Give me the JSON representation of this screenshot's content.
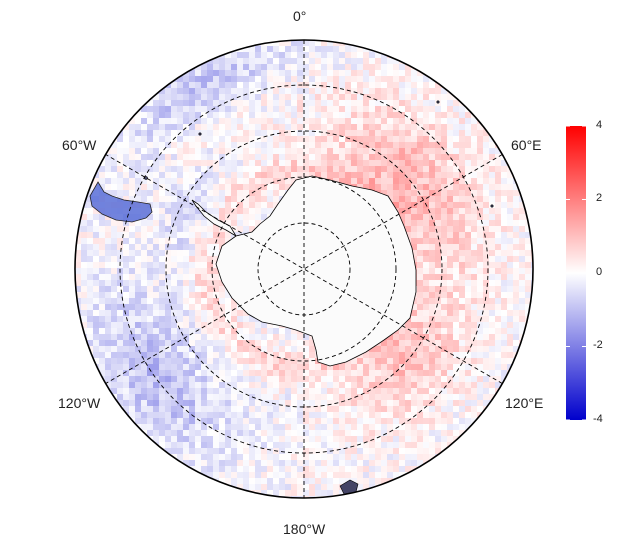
{
  "map": {
    "projection": "south-polar-stereographic",
    "longitude_labels": [
      "0°",
      "60°E",
      "120°E",
      "180°W",
      "120°W",
      "60°W"
    ],
    "colorbar": {
      "ticks": [
        "4",
        "2",
        "0",
        "-2",
        "-4"
      ],
      "min": -4,
      "max": 4,
      "colors": {
        "high": "#ff0000",
        "mid": "#ffffff",
        "low": "#0000cc"
      }
    },
    "colors": {
      "coastline": "#000000",
      "gridline": "#000000",
      "land": "#fbfbfb",
      "border": "#000000"
    },
    "icons": [
      "polar-map",
      "coastline-antarctica",
      "coastline-south-america"
    ]
  }
}
